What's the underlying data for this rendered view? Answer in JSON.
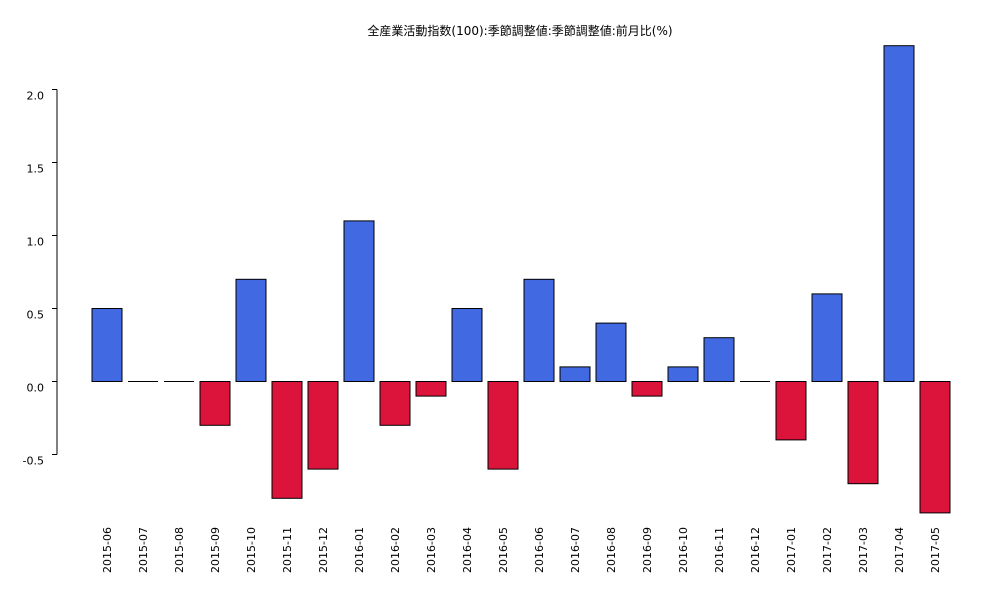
{
  "chart_data": {
    "type": "bar",
    "title": "全産業活動指数(100):季節調整値:季節調整値:前月比(%)",
    "xlabel": "",
    "ylabel": "",
    "categories": [
      "2015-06",
      "2015-07",
      "2015-08",
      "2015-09",
      "2015-10",
      "2015-11",
      "2015-12",
      "2016-01",
      "2016-02",
      "2016-03",
      "2016-04",
      "2016-05",
      "2016-06",
      "2016-07",
      "2016-08",
      "2016-09",
      "2016-10",
      "2016-11",
      "2016-12",
      "2017-01",
      "2017-02",
      "2017-03",
      "2017-04",
      "2017-05"
    ],
    "values": [
      0.5,
      0.0,
      0.0,
      -0.3,
      0.7,
      -0.8,
      -0.6,
      1.1,
      -0.3,
      -0.1,
      0.5,
      -0.6,
      0.7,
      0.1,
      0.4,
      -0.1,
      0.1,
      0.3,
      0.0,
      -0.4,
      0.6,
      -0.7,
      2.3,
      -0.9
    ],
    "yticks": [
      "-0.5",
      "0.0",
      "0.5",
      "1.0",
      "1.5",
      "2.0"
    ],
    "ylim": [
      -0.9,
      2.3
    ],
    "grid": false,
    "colors": {
      "positive": "#4169e1",
      "negative": "#dc143c",
      "zero": "#000000",
      "edge": "#000000"
    }
  }
}
